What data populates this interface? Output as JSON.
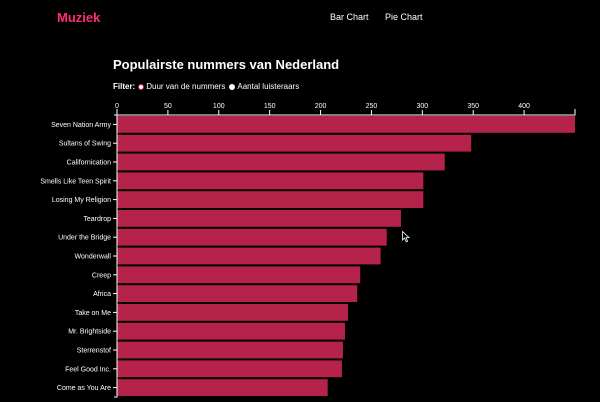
{
  "nav": {
    "brand": "Muziek",
    "links": [
      "Bar Chart",
      "Pie Chart"
    ]
  },
  "page": {
    "title": "Populairste nummers van Nederland"
  },
  "filter": {
    "label": "Filter:",
    "options": [
      {
        "label": "Duur van de nummers",
        "selected": true
      },
      {
        "label": "Aantal luisteraars",
        "selected": false
      }
    ]
  },
  "colors": {
    "brand": "#ff2e6c",
    "bar": "#b5224a",
    "background": "#000000"
  },
  "chart_data": {
    "type": "bar",
    "orientation": "horizontal",
    "title": "",
    "xlabel": "",
    "ylabel": "",
    "xlim": [
      0,
      450
    ],
    "xticks": [
      0,
      50,
      100,
      150,
      200,
      250,
      300,
      350,
      400
    ],
    "categories": [
      "Seven Nation Army",
      "Sultans of Swing",
      "Californication",
      "Smells Like Teen Spirit",
      "Losing My Religion",
      "Teardrop",
      "Under the Bridge",
      "Wonderwall",
      "Creep",
      "Africa",
      "Take on Me",
      "Mr. Brightside",
      "Sterrenstof",
      "Feel Good Inc.",
      "Come as You Are"
    ],
    "values": [
      450,
      348,
      322,
      301,
      301,
      279,
      265,
      259,
      239,
      236,
      227,
      224,
      222,
      221,
      207
    ],
    "grid": false
  }
}
